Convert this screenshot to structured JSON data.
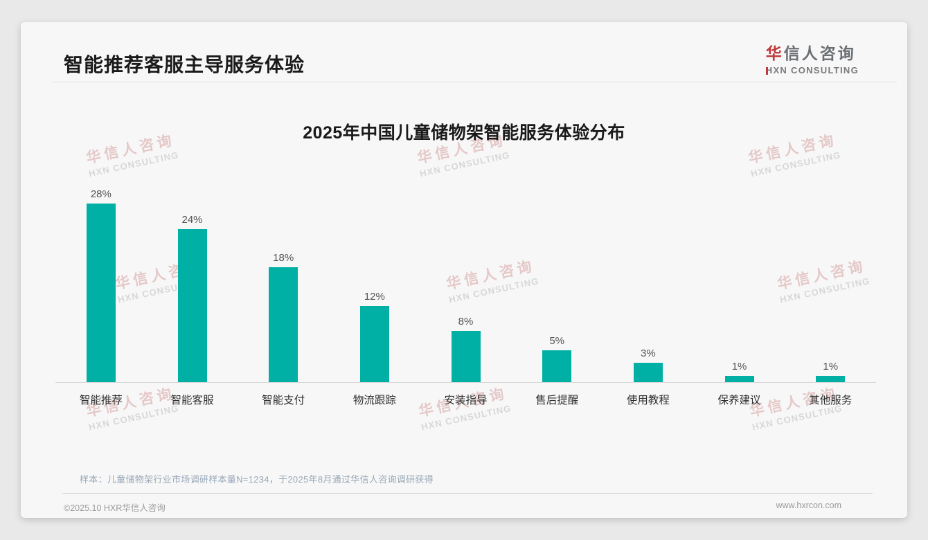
{
  "header": {
    "title": "智能推荐客服主导服务体验",
    "logo": {
      "cn": "华信人咨询",
      "en": "HXN CONSULTING",
      "accent_color": "#c0393b"
    }
  },
  "watermark": {
    "cn": "华信人咨询",
    "en": "HXN CONSULTING"
  },
  "chart_data": {
    "type": "bar",
    "title": "2025年中国儿童储物架智能服务体验分布",
    "categories": [
      "智能推荐",
      "智能客服",
      "智能支付",
      "物流跟踪",
      "安装指导",
      "售后提醒",
      "使用教程",
      "保养建议",
      "其他服务"
    ],
    "values": [
      28,
      24,
      18,
      12,
      8,
      5,
      3,
      1,
      1
    ],
    "value_labels": [
      "28%",
      "24%",
      "18%",
      "12%",
      "8%",
      "5%",
      "3%",
      "1%",
      "1%"
    ],
    "unit": "%",
    "ylim": [
      0,
      30
    ],
    "bar_color": "#00b0a5",
    "grid": false,
    "legend": null
  },
  "footnote": {
    "sample_note": "样本：儿童储物架行业市场调研样本量N=1234，于2025年8月通过华信人咨询调研获得"
  },
  "footer": {
    "left": "©2025.10 HXR华信人咨询",
    "right": "www.hxrcon.com"
  }
}
